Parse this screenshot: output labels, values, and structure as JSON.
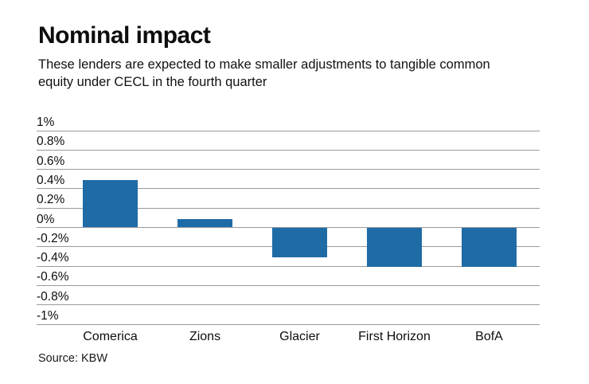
{
  "colors": {
    "bar": "#1f6ba6",
    "grid": "#9a9a9a",
    "text": "#0d0d0d"
  },
  "chart_data": {
    "type": "bar",
    "title": "Nominal impact",
    "subtitle": "These lenders are expected to make smaller adjustments to tangible common equity under CECL in the fourth quarter",
    "categories": [
      "Comerica",
      "Zions",
      "Glacier",
      "First Horizon",
      "BofA"
    ],
    "values": [
      0.49,
      0.09,
      -0.31,
      -0.41,
      -0.41
    ],
    "unit": "%",
    "xlabel": "",
    "ylabel": "",
    "ylim": [
      -1,
      1
    ],
    "grid": true,
    "legend": false,
    "yticks": [
      {
        "value": 1.0,
        "label": "1%"
      },
      {
        "value": 0.8,
        "label": "0.8%"
      },
      {
        "value": 0.6,
        "label": "0.6%"
      },
      {
        "value": 0.4,
        "label": "0.4%"
      },
      {
        "value": 0.2,
        "label": "0.2%"
      },
      {
        "value": 0.0,
        "label": "0%"
      },
      {
        "value": -0.2,
        "label": "-0.2%"
      },
      {
        "value": -0.4,
        "label": "-0.4%"
      },
      {
        "value": -0.6,
        "label": "-0.6%"
      },
      {
        "value": -0.8,
        "label": "-0.8%"
      },
      {
        "value": -1.0,
        "label": "-1%"
      }
    ],
    "source": "Source: KBW"
  }
}
